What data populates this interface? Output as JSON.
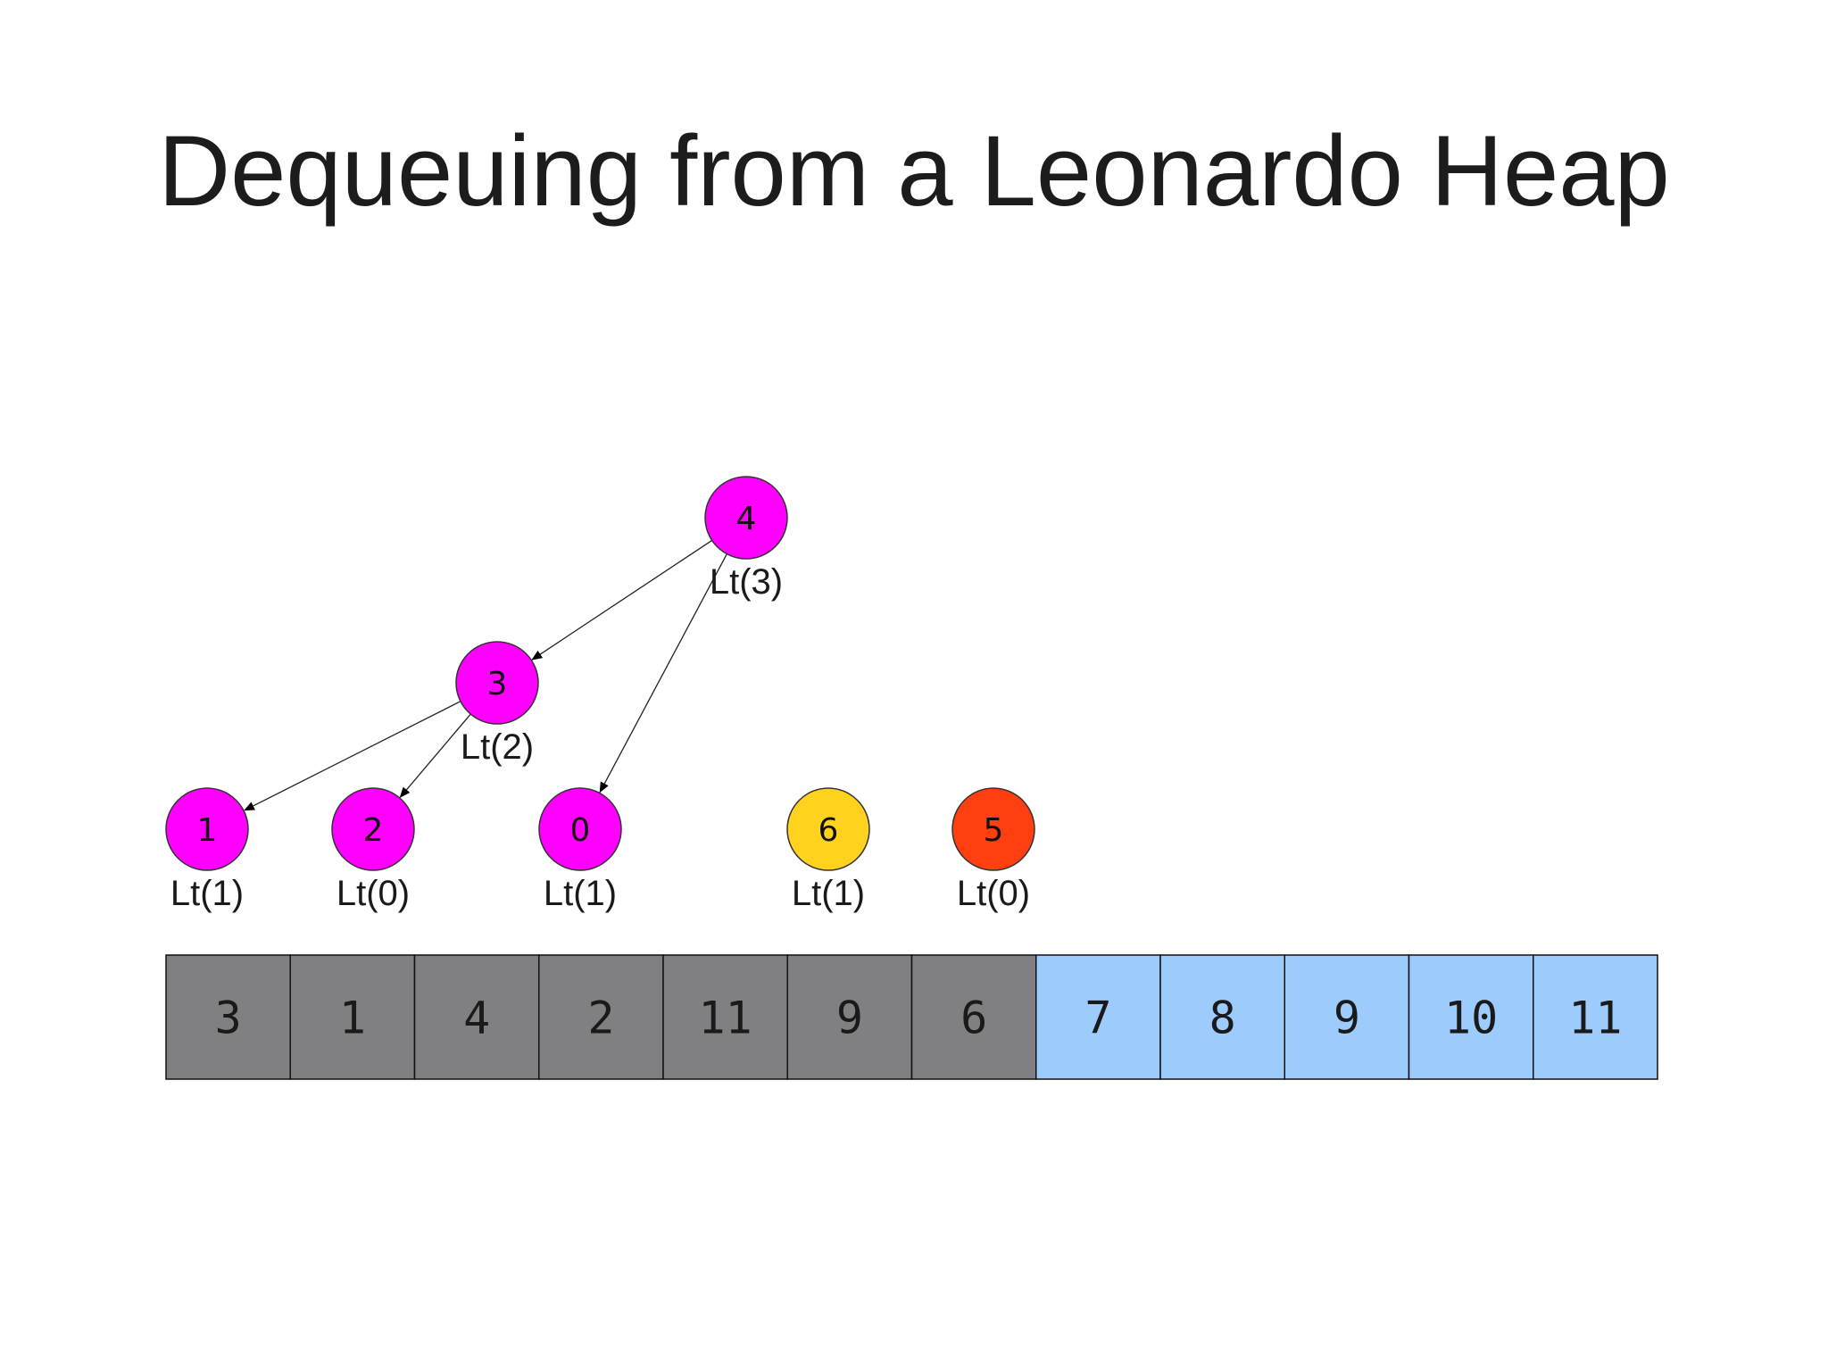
{
  "title": "Dequeuing from a Leonardo Heap",
  "colors": {
    "tree_node": "#ff00ff",
    "highlight_node": "#ffd21e",
    "removed_node": "#ff3f0f",
    "heap_cell": "#807f81",
    "sorted_cell": "#9dcbfc"
  },
  "nodes": [
    {
      "id": "n4",
      "value": "4",
      "label": "Lt(3)",
      "color": "tree_node"
    },
    {
      "id": "n3",
      "value": "3",
      "label": "Lt(2)",
      "color": "tree_node"
    },
    {
      "id": "n1",
      "value": "1",
      "label": "Lt(1)",
      "color": "tree_node"
    },
    {
      "id": "n2",
      "value": "2",
      "label": "Lt(0)",
      "color": "tree_node"
    },
    {
      "id": "n0",
      "value": "0",
      "label": "Lt(1)",
      "color": "tree_node"
    },
    {
      "id": "n6",
      "value": "6",
      "label": "Lt(1)",
      "color": "highlight_node"
    },
    {
      "id": "n5",
      "value": "5",
      "label": "Lt(0)",
      "color": "removed_node"
    }
  ],
  "edges": [
    {
      "from": "n4",
      "to": "n3"
    },
    {
      "from": "n4",
      "to": "n0"
    },
    {
      "from": "n3",
      "to": "n1"
    },
    {
      "from": "n3",
      "to": "n2"
    }
  ],
  "array": {
    "heap_cells": [
      "3",
      "1",
      "4",
      "2",
      "11",
      "9",
      "6"
    ],
    "sorted_cells": [
      "7",
      "8",
      "9",
      "10",
      "11"
    ]
  }
}
